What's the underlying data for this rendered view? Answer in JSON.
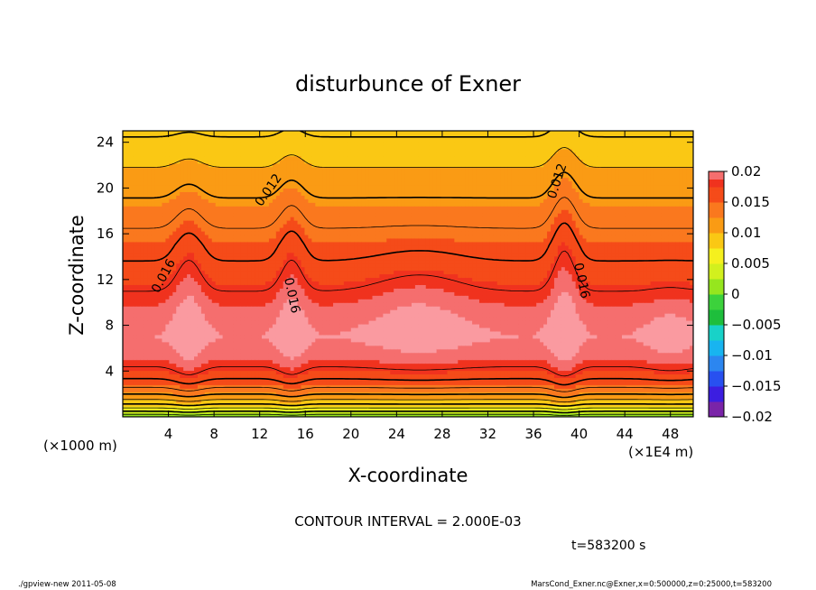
{
  "chart_data": {
    "type": "heatmap",
    "title": "disturbunce of Exner",
    "xlabel": "X-coordinate",
    "ylabel": "Z-coordinate",
    "x_unit_left": "(×1000 m)",
    "x_unit_right": "(×1E4 m)",
    "xlim": [
      0,
      50
    ],
    "ylim": [
      0,
      25
    ],
    "x_ticks": [
      "4",
      "8",
      "12",
      "16",
      "20",
      "24",
      "28",
      "32",
      "36",
      "40",
      "44",
      "48"
    ],
    "y_ticks": [
      "4",
      "8",
      "12",
      "16",
      "20",
      "24"
    ],
    "colorbar": {
      "min": -0.02,
      "max": 0.02,
      "labels": [
        "0.02",
        "0.015",
        "0.01",
        "0.005",
        "0",
        "−0.005",
        "−0.01",
        "−0.015",
        "−0.02"
      ]
    },
    "contour_labels": [
      {
        "text": "0.016",
        "x": 3.6,
        "z": 12.3,
        "angle": -62
      },
      {
        "text": "0.012",
        "x": 12.8,
        "z": 19.8,
        "angle": -55
      },
      {
        "text": "0.016",
        "x": 14.8,
        "z": 10.6,
        "angle": 78
      },
      {
        "text": "0.012",
        "x": 38.1,
        "z": 20.6,
        "angle": -72
      },
      {
        "text": "0.016",
        "x": 40.2,
        "z": 11.9,
        "angle": 78
      }
    ],
    "contour_interval": "CONTOUR INTERVAL = 2.000E-03",
    "time": "t=583200 s"
  },
  "footer": {
    "left": "./gpview-new   2011-05-08",
    "right": "MarsCond_Exner.nc@Exner,x=0:500000,z=0:25000,t=583200"
  }
}
